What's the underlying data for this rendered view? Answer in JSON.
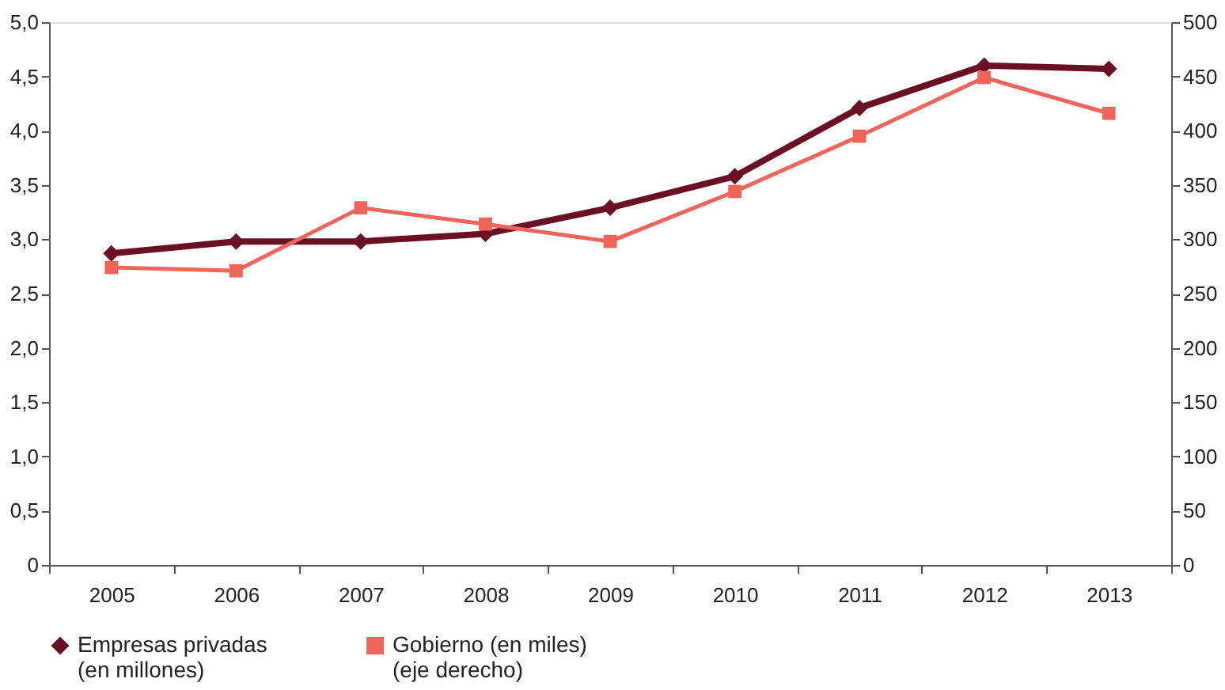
{
  "chart_data": {
    "type": "line",
    "categories": [
      "2005",
      "2006",
      "2007",
      "2008",
      "2009",
      "2010",
      "2011",
      "2012",
      "2013"
    ],
    "series": [
      {
        "name": "Empresas privadas\n(en millones)",
        "color": "#6b0f24",
        "marker": "diamond",
        "values": [
          2.87,
          2.98,
          2.98,
          3.05,
          3.29,
          3.58,
          4.21,
          4.6,
          4.57
        ]
      },
      {
        "name": "Gobierno (en miles)\n(eje derecho)",
        "color": "#f0645a",
        "marker": "square",
        "axis": "y2",
        "values": [
          274,
          271,
          329,
          314,
          298,
          344,
          395,
          449,
          416
        ]
      }
    ],
    "ylim": [
      0,
      5
    ],
    "yticks": [
      0,
      {
        "value": 0.5,
        "label": "0,5"
      },
      {
        "value": 1,
        "label": "1,0"
      },
      {
        "value": 1.5,
        "label": "1,5"
      },
      {
        "value": 2,
        "label": "2,0"
      },
      {
        "value": 2.5,
        "label": "2,5"
      },
      {
        "value": 3,
        "label": "3,0"
      },
      {
        "value": 3.5,
        "label": "3,5"
      },
      {
        "value": 4,
        "label": "4,0"
      },
      {
        "value": 4.5,
        "label": "4,5"
      },
      {
        "value": 5,
        "label": "5,0"
      }
    ],
    "y2lim": [
      0,
      500
    ],
    "y2ticks": [
      0,
      50,
      100,
      150,
      200,
      250,
      300,
      350,
      400,
      450,
      500
    ],
    "grid": false,
    "legend": "bottom",
    "line_style": "solid"
  }
}
